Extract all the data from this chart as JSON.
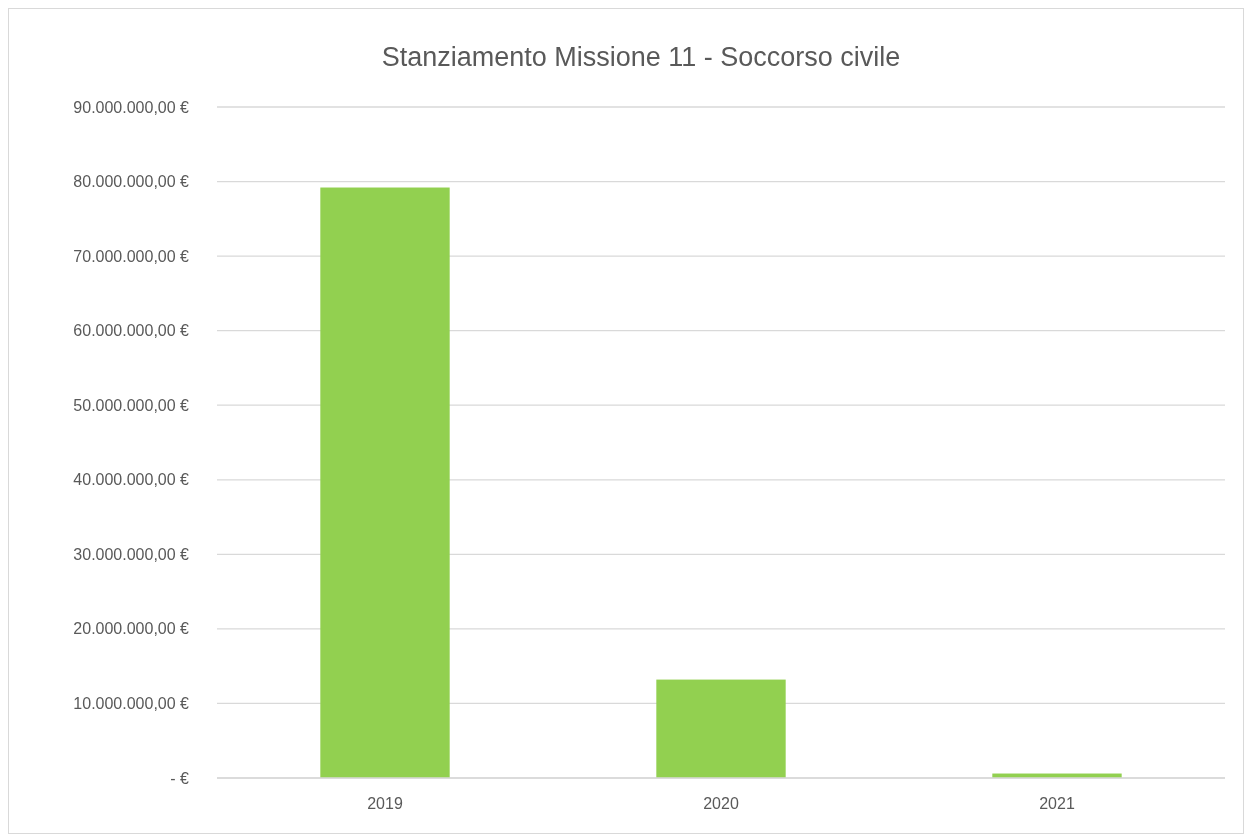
{
  "chart_data": {
    "type": "bar",
    "title": "Stanziamento Missione 11 - Soccorso civile",
    "categories": [
      "2019",
      "2020",
      "2021"
    ],
    "values": [
      79200000,
      13200000,
      600000
    ],
    "color": "#92d050",
    "ylim": [
      0,
      90000000
    ],
    "yticks": [
      {
        "value": 0,
        "label": "-   €"
      },
      {
        "value": 10000000,
        "label": "10.000.000,00 €"
      },
      {
        "value": 20000000,
        "label": "20.000.000,00 €"
      },
      {
        "value": 30000000,
        "label": "30.000.000,00 €"
      },
      {
        "value": 40000000,
        "label": "40.000.000,00 €"
      },
      {
        "value": 50000000,
        "label": "50.000.000,00 €"
      },
      {
        "value": 60000000,
        "label": "60.000.000,00 €"
      },
      {
        "value": 70000000,
        "label": "70.000.000,00 €"
      },
      {
        "value": 80000000,
        "label": "80.000.000,00 €"
      },
      {
        "value": 90000000,
        "label": "90.000.000,00 €"
      }
    ],
    "grid": "y"
  }
}
